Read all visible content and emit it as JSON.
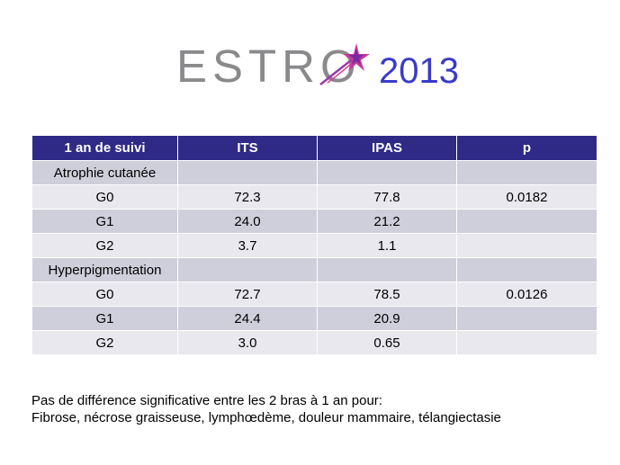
{
  "logo": {
    "brand": "ESTRO",
    "year": "2013"
  },
  "table": {
    "headers": [
      "1 an de suivi",
      "ITS",
      "IPAS",
      "p"
    ],
    "rows": [
      [
        "Atrophie cutanée",
        "",
        "",
        ""
      ],
      [
        "G0",
        "72.3",
        "77.8",
        "0.0182"
      ],
      [
        "G1",
        "24.0",
        "21.2",
        ""
      ],
      [
        "G2",
        "3.7",
        "1.1",
        ""
      ],
      [
        "Hyperpigmentation",
        "",
        "",
        ""
      ],
      [
        "G0",
        "72.7",
        "78.5",
        "0.0126"
      ],
      [
        "G1",
        "24.4",
        "20.9",
        ""
      ],
      [
        "G2",
        "3.0",
        "0.65",
        ""
      ]
    ]
  },
  "note": {
    "line1": "Pas de différence significative entre les 2 bras à 1 an pour:",
    "line2": "Fibrose, nécrose graisseuse, lymphœdème, douleur mammaire, télangiectasie"
  },
  "colors": {
    "header_bg": "#2e2a86",
    "row_dark": "#cfcfdb",
    "row_light": "#e8e8ee",
    "year": "#3a3ac9",
    "brand": "#8a8a8c"
  }
}
